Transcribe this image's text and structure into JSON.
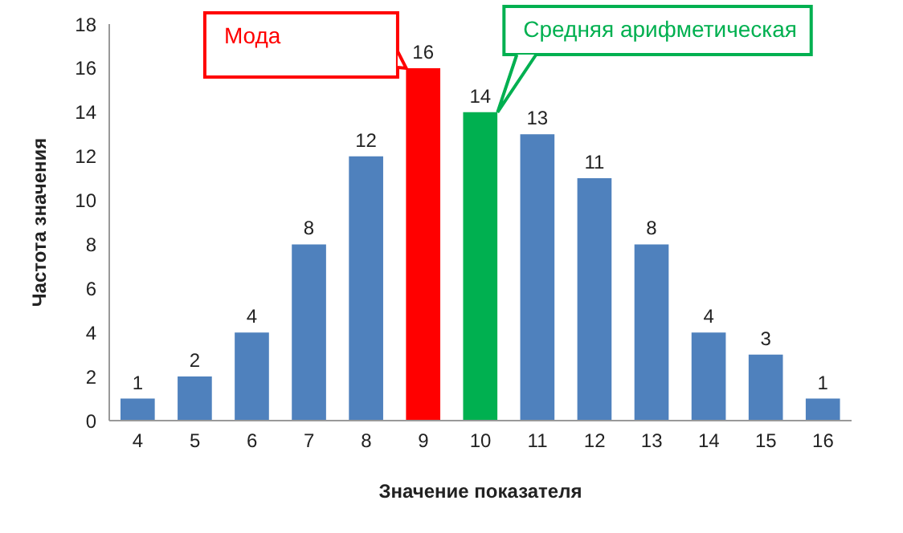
{
  "chart_data": {
    "type": "bar",
    "xlabel": "Значение показателя",
    "ylabel": "Частота значения",
    "categories": [
      "4",
      "5",
      "6",
      "7",
      "8",
      "9",
      "10",
      "11",
      "12",
      "13",
      "14",
      "15",
      "16"
    ],
    "values": [
      1,
      2,
      4,
      8,
      12,
      16,
      14,
      13,
      11,
      8,
      4,
      3,
      1
    ],
    "colors": [
      "#4f81bd",
      "#4f81bd",
      "#4f81bd",
      "#4f81bd",
      "#4f81bd",
      "#ff0000",
      "#00b050",
      "#4f81bd",
      "#4f81bd",
      "#4f81bd",
      "#4f81bd",
      "#4f81bd",
      "#4f81bd"
    ],
    "ylim": [
      0,
      18
    ],
    "yticks": [
      0,
      2,
      4,
      6,
      8,
      10,
      12,
      14,
      16,
      18
    ],
    "grid": false,
    "data_labels": true,
    "legend": false,
    "annotations": [
      "Мода",
      "Средняя арифметическая"
    ]
  }
}
